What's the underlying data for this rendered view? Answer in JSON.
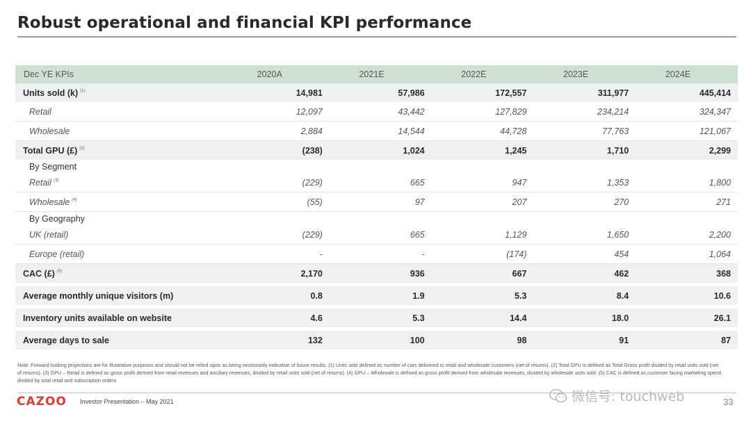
{
  "title": "Robust operational and financial KPI performance",
  "table": {
    "header": [
      "Dec YE KPIs",
      "2020A",
      "2021E",
      "2022E",
      "2023E",
      "2024E"
    ],
    "rows": [
      {
        "type": "main",
        "label": "Units sold (k)",
        "note": "(1)",
        "values": [
          "14,981",
          "57,986",
          "172,557",
          "311,977",
          "445,414"
        ]
      },
      {
        "type": "sub",
        "label": "Retail",
        "note": "",
        "values": [
          "12,097",
          "43,442",
          "127,829",
          "234,214",
          "324,347"
        ]
      },
      {
        "type": "sub",
        "label": "Wholesale",
        "note": "",
        "values": [
          "2,884",
          "14,544",
          "44,728",
          "77,763",
          "121,067"
        ]
      },
      {
        "type": "main",
        "label": "Total GPU (£)",
        "note": "(2)",
        "values": [
          "(238)",
          "1,024",
          "1,245",
          "1,710",
          "2,299"
        ]
      },
      {
        "type": "group",
        "label": "By Segment"
      },
      {
        "type": "sub",
        "label": "Retail",
        "note": "(3)",
        "values": [
          "(229)",
          "665",
          "947",
          "1,353",
          "1,800"
        ]
      },
      {
        "type": "sub",
        "label": "Wholesale",
        "note": "(4)",
        "values": [
          "(55)",
          "97",
          "207",
          "270",
          "271"
        ]
      },
      {
        "type": "group",
        "label": "By Geography"
      },
      {
        "type": "sub",
        "label": "UK (retail)",
        "note": "",
        "values": [
          "(229)",
          "665",
          "1,129",
          "1,650",
          "2,200"
        ]
      },
      {
        "type": "sub",
        "label": "Europe (retail)",
        "note": "",
        "values": [
          "-",
          "-",
          "(174)",
          "454",
          "1,064"
        ]
      },
      {
        "type": "main",
        "label": "CAC (£)",
        "note": "(5)",
        "values": [
          "2,170",
          "936",
          "667",
          "462",
          "368"
        ]
      },
      {
        "type": "sep"
      },
      {
        "type": "main",
        "label": "Average monthly unique visitors (m)",
        "note": "",
        "values": [
          "0.8",
          "1.9",
          "5.3",
          "8.4",
          "10.6"
        ]
      },
      {
        "type": "sep"
      },
      {
        "type": "main",
        "label": "Inventory units available on website",
        "note": "",
        "values": [
          "4.6",
          "5.3",
          "14.4",
          "18.0",
          "26.1"
        ]
      },
      {
        "type": "sep"
      },
      {
        "type": "main",
        "label": "Average days to sale",
        "note": "",
        "values": [
          "132",
          "100",
          "98",
          "91",
          "87"
        ]
      }
    ]
  },
  "footnote": "Note: Forward-looking projections are for illustrative purposes and should not be relied upon as being necessarily indicative of future results. (1) Units sold defined as number of cars delivered to retail and wholesale customers (net of returns). (2) Total GPU is defined as Total Gross profit divided by retail units sold (net of returns). (3) GPU – Retail is defined as gross profit derived from retail revenues and ancillary revenues, divided by retail units sold (net of returns). (4) GPU – Wholesale is defined as gross profit derived from wholesale revenues, divided by wholesale units sold. (5) CAC is defined as customer facing marketing spend divided by total retail and subscription orders",
  "footer": {
    "logo": "CAZOO",
    "text": "Investor Presentation – May 2021",
    "page": "33"
  },
  "watermark": "微信号: touchweb",
  "colors": {
    "header_bg": "#cfe0d3",
    "row_bg": "#eef1ef",
    "brand": "#e23b2e"
  }
}
